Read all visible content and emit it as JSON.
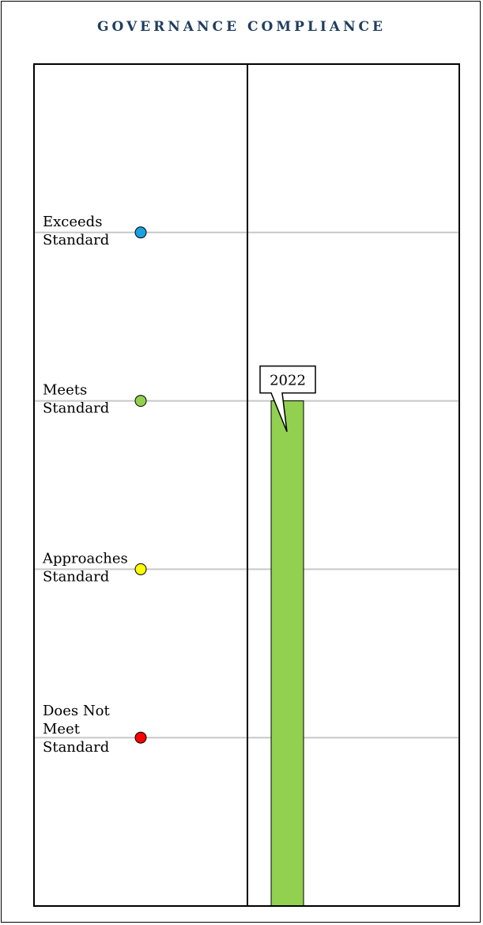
{
  "title": "GOVERNANCE COMPLIANCE",
  "chart_data": {
    "type": "bar",
    "title": "GOVERNANCE COMPLIANCE",
    "ylim": [
      0,
      5
    ],
    "levels": [
      {
        "value": 4,
        "label_lines": [
          "Exceeds",
          "Standard"
        ],
        "color": "#1ba1e2"
      },
      {
        "value": 3,
        "label_lines": [
          "Meets",
          "Standard"
        ],
        "color": "#92d050"
      },
      {
        "value": 2,
        "label_lines": [
          "Approaches",
          "Standard"
        ],
        "color": "#ffff00"
      },
      {
        "value": 1,
        "label_lines": [
          "Does Not",
          "Meet",
          "Standard"
        ],
        "color": "#ff0000"
      }
    ],
    "categories": [
      "2022"
    ],
    "values": [
      3
    ],
    "bar_color": "#92d050",
    "grid_color": "#c8c8c8"
  }
}
